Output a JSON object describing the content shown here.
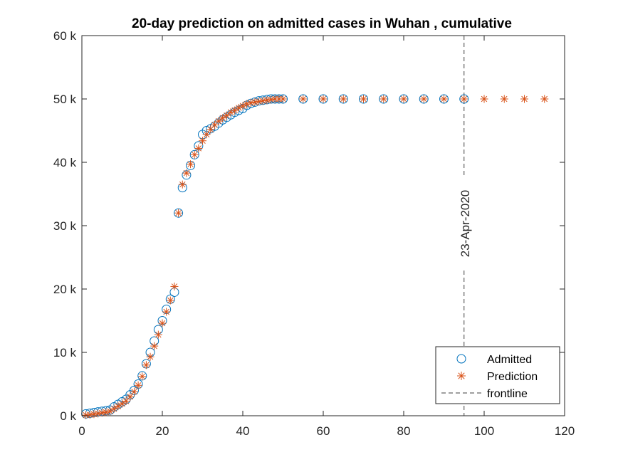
{
  "chart_data": {
    "type": "scatter",
    "title": "20-day prediction on admitted cases in Wuhan , cumulative",
    "xlabel": "",
    "ylabel": "",
    "xlim": [
      0,
      120
    ],
    "ylim": [
      0,
      60000
    ],
    "xticks": [
      0,
      20,
      40,
      60,
      80,
      100,
      120
    ],
    "yticks": [
      0,
      10000,
      20000,
      30000,
      40000,
      50000,
      60000
    ],
    "ytick_labels": [
      "0 k",
      "10 k",
      "20 k",
      "30 k",
      "40 k",
      "50 k",
      "60 k"
    ],
    "grid": false,
    "legend_position": "bottom-right",
    "series": [
      {
        "name": "Admitted",
        "marker": "circle",
        "color": "#0072BD",
        "x": [
          1,
          2,
          3,
          4,
          5,
          6,
          7,
          8,
          9,
          10,
          11,
          12,
          13,
          14,
          15,
          16,
          17,
          18,
          19,
          20,
          21,
          22,
          23,
          24,
          25,
          26,
          27,
          28,
          29,
          30,
          31,
          32,
          33,
          34,
          35,
          36,
          37,
          38,
          39,
          40,
          41,
          42,
          43,
          44,
          45,
          46,
          47,
          48,
          49,
          50,
          55,
          60,
          65,
          70,
          75,
          80,
          85,
          90,
          95
        ],
        "y": [
          300,
          400,
          500,
          600,
          700,
          800,
          900,
          1400,
          1800,
          2200,
          2600,
          3300,
          4000,
          5000,
          6300,
          8200,
          10000,
          11800,
          13600,
          15000,
          16800,
          18400,
          19500,
          32000,
          36000,
          38000,
          39500,
          41200,
          42600,
          44400,
          45000,
          45300,
          45700,
          46200,
          46700,
          47100,
          47500,
          47900,
          48200,
          48500,
          49000,
          49300,
          49500,
          49700,
          49800,
          49900,
          50000,
          50000,
          50000,
          50000,
          50000,
          50000,
          50000,
          50000,
          50000,
          50000,
          50000,
          50000,
          50000
        ]
      },
      {
        "name": "Prediction",
        "marker": "asterisk",
        "color": "#D95319",
        "x": [
          1,
          2,
          3,
          4,
          5,
          6,
          7,
          8,
          9,
          10,
          11,
          12,
          13,
          14,
          15,
          16,
          17,
          18,
          19,
          20,
          21,
          22,
          23,
          24,
          25,
          26,
          27,
          28,
          29,
          30,
          31,
          32,
          33,
          34,
          35,
          36,
          37,
          38,
          39,
          40,
          41,
          42,
          43,
          44,
          45,
          46,
          47,
          48,
          49,
          50,
          55,
          60,
          65,
          70,
          75,
          80,
          85,
          90,
          95,
          100,
          105,
          110,
          115
        ],
        "y": [
          100,
          150,
          250,
          350,
          450,
          550,
          700,
          1100,
          1500,
          1900,
          2300,
          3000,
          3800,
          4800,
          6200,
          8000,
          9300,
          11000,
          12800,
          14600,
          16400,
          18200,
          20400,
          32000,
          36500,
          38300,
          39700,
          41200,
          42200,
          43400,
          44400,
          45200,
          45900,
          46500,
          47000,
          47400,
          47900,
          48200,
          48600,
          48900,
          49200,
          49400,
          49500,
          49600,
          49700,
          49800,
          49900,
          50000,
          50000,
          50000,
          50000,
          50000,
          50000,
          50000,
          50000,
          50000,
          50000,
          50000,
          50000,
          50000,
          50000,
          50000,
          50000
        ]
      }
    ],
    "frontline": {
      "name": "frontline",
      "x": 95,
      "label": "23-Apr-2020",
      "color": "#404040"
    }
  }
}
